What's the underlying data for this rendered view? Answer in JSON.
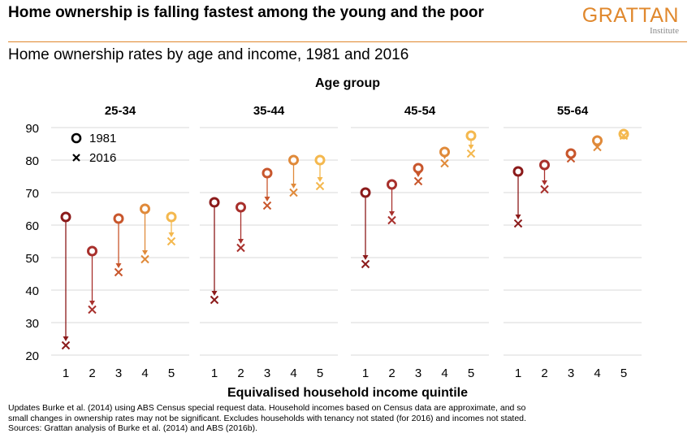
{
  "header": {
    "headline": "Home ownership is falling fastest among the young and the poor",
    "subtitle": "Home ownership rates by age and income, 1981 and 2016",
    "logo": {
      "brand": "GRATTAN",
      "sub": "Institute"
    }
  },
  "chart_data": {
    "type": "scatter",
    "title": "Age group",
    "xlabel": "Equivalised household income quintile",
    "ylabel": "",
    "ylim": [
      20,
      90
    ],
    "yticks": [
      20,
      30,
      40,
      50,
      60,
      70,
      80,
      90
    ],
    "grid": true,
    "legend": {
      "placement": "top-left",
      "entries": [
        {
          "marker": "circle",
          "label": "1981"
        },
        {
          "marker": "cross",
          "label": "2016"
        }
      ]
    },
    "colors": [
      "#8b1a1a",
      "#a8302c",
      "#c8562c",
      "#e08a3a",
      "#f4b84e"
    ],
    "panels": [
      {
        "name": "25-34",
        "x": [
          1,
          2,
          3,
          4,
          5
        ],
        "y1981": [
          62.5,
          52,
          62,
          65,
          62.5
        ],
        "y2016": [
          23,
          34,
          45.5,
          49.5,
          55
        ]
      },
      {
        "name": "35-44",
        "x": [
          1,
          2,
          3,
          4,
          5
        ],
        "y1981": [
          67,
          65.5,
          76,
          80,
          80
        ],
        "y2016": [
          37,
          53,
          66,
          70,
          72
        ]
      },
      {
        "name": "45-54",
        "x": [
          1,
          2,
          3,
          4,
          5
        ],
        "y1981": [
          70,
          72.5,
          77.5,
          82.5,
          87.5
        ],
        "y2016": [
          48,
          61.5,
          73.5,
          79,
          82
        ]
      },
      {
        "name": "55-64",
        "x": [
          1,
          2,
          3,
          4,
          5
        ],
        "y1981": [
          76.5,
          78.5,
          82,
          86,
          88
        ],
        "y2016": [
          60.5,
          71,
          80.5,
          84,
          87.5
        ]
      }
    ]
  },
  "footnote": [
    "Updates Burke et al. (2014) using ABS Census special request data. Household incomes based on Census data are approximate, and so",
    "small changes in ownership rates may not be significant. Excludes households with tenancy not stated (for 2016) and incomes not stated.",
    "Sources: Grattan analysis of Burke et al. (2014) and ABS (2016b)."
  ]
}
